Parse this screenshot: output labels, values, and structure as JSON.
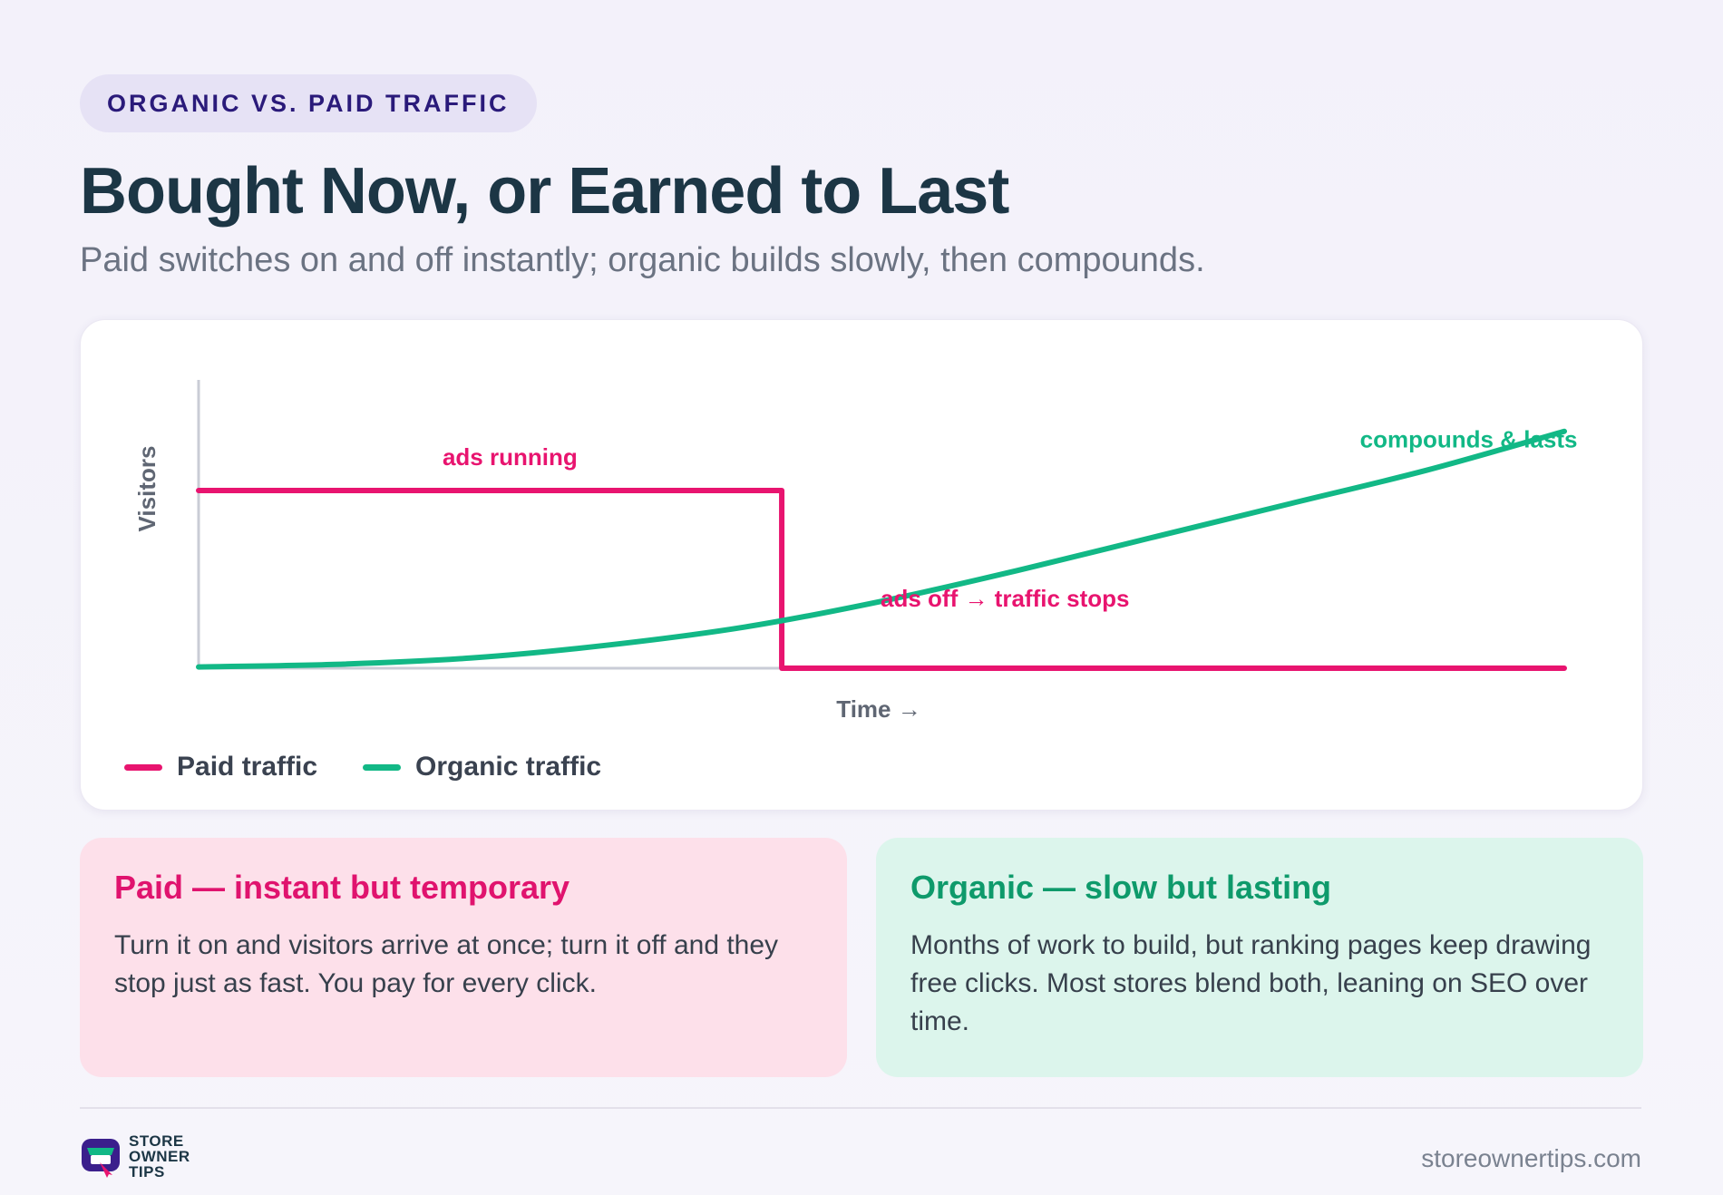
{
  "header": {
    "eyebrow": "ORGANIC VS. PAID TRAFFIC",
    "title": "Bought Now, or Earned to Last",
    "subtitle": "Paid switches on and off instantly; organic builds slowly, then compounds."
  },
  "colors": {
    "paid": "#e8146f",
    "organic": "#12b886",
    "axis": "#c9ccd6"
  },
  "chart_data": {
    "type": "line",
    "xlabel": "Time →",
    "ylabel": "Visitors",
    "xlim": [
      0,
      100
    ],
    "ylim": [
      0,
      100
    ],
    "grid": false,
    "legend_position": "bottom-left",
    "series": [
      {
        "name": "Paid traffic",
        "color": "#e8146f",
        "points": [
          [
            0,
            69
          ],
          [
            42.7,
            69
          ],
          [
            42.7,
            0
          ],
          [
            100,
            0
          ]
        ]
      },
      {
        "name": "Organic traffic",
        "color": "#12b886",
        "points": [
          [
            0,
            0.5
          ],
          [
            10,
            1.5
          ],
          [
            20,
            4
          ],
          [
            30,
            9
          ],
          [
            40,
            16
          ],
          [
            50,
            26
          ],
          [
            60,
            38
          ],
          [
            70,
            51
          ],
          [
            80,
            64
          ],
          [
            90,
            77
          ],
          [
            100,
            92
          ]
        ]
      }
    ],
    "annotations": [
      {
        "text": "ads running",
        "series": "Paid traffic",
        "x": 22.8,
        "y": 69
      },
      {
        "text": "ads off → traffic stops",
        "series": "Paid traffic",
        "x": 59,
        "y": 22
      },
      {
        "text": "compounds & lasts",
        "series": "Organic traffic",
        "x": 93,
        "y": 92
      }
    ]
  },
  "cards": {
    "paid": {
      "title": "Paid — instant but temporary",
      "body": "Turn it on and visitors arrive at once; turn it off and they stop just as fast. You pay for every click."
    },
    "organic": {
      "title": "Organic — slow but lasting",
      "body": "Months of work to build, but ranking pages keep drawing free clicks. Most stores blend both, leaning on SEO over time."
    }
  },
  "footer": {
    "logo_lines": [
      "STORE",
      "OWNER",
      "TIPS"
    ],
    "logo_icon": "storefront-cart-icon",
    "site": "storeownertips.com"
  }
}
